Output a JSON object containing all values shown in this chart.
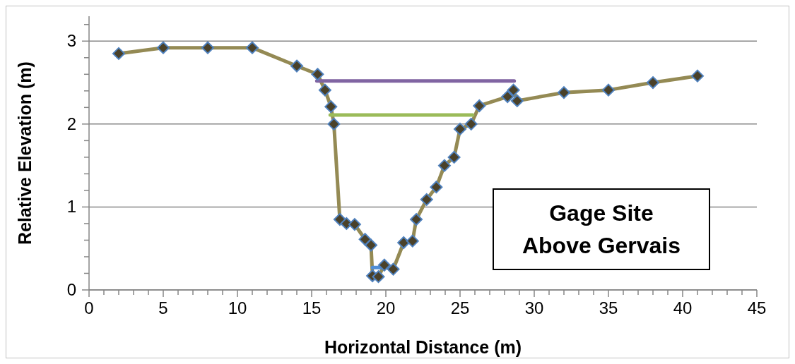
{
  "chart_data": {
    "type": "line",
    "xlabel": "Horizontal Distance (m)",
    "ylabel": "Relative Elevation (m)",
    "xlim": [
      0,
      45
    ],
    "xticks": [
      0,
      {
        "value": 1,
        "label": null
      },
      {
        "value": 2,
        "label": null
      },
      {
        "value": 3,
        "label": null
      },
      {
        "value": 4,
        "label": null
      },
      5,
      {
        "value": 6,
        "label": null
      },
      {
        "value": 7,
        "label": null
      },
      {
        "value": 8,
        "label": null
      },
      {
        "value": 9,
        "label": null
      },
      10,
      {
        "value": 11,
        "label": null
      },
      {
        "value": 12,
        "label": null
      },
      {
        "value": 13,
        "label": null
      },
      {
        "value": 14,
        "label": null
      },
      15,
      {
        "value": 16,
        "label": null
      },
      {
        "value": 17,
        "label": null
      },
      {
        "value": 18,
        "label": null
      },
      {
        "value": 19,
        "label": null
      },
      20,
      {
        "value": 21,
        "label": null
      },
      {
        "value": 22,
        "label": null
      },
      {
        "value": 23,
        "label": null
      },
      {
        "value": 24,
        "label": null
      },
      25,
      {
        "value": 26,
        "label": null
      },
      {
        "value": 27,
        "label": null
      },
      {
        "value": 28,
        "label": null
      },
      {
        "value": 29,
        "label": null
      },
      30,
      {
        "value": 31,
        "label": null
      },
      {
        "value": 32,
        "label": null
      },
      {
        "value": 33,
        "label": null
      },
      {
        "value": 34,
        "label": null
      },
      35,
      {
        "value": 36,
        "label": null
      },
      {
        "value": 37,
        "label": null
      },
      {
        "value": 38,
        "label": null
      },
      {
        "value": 39,
        "label": null
      },
      40,
      {
        "value": 41,
        "label": null
      },
      {
        "value": 42,
        "label": null
      },
      {
        "value": 43,
        "label": null
      },
      {
        "value": 44,
        "label": null
      },
      45
    ],
    "ylim": [
      0,
      3.3
    ],
    "yticks": [
      0,
      {
        "value": 0.2,
        "label": null
      },
      {
        "value": 0.4,
        "label": null
      },
      {
        "value": 0.6,
        "label": null
      },
      {
        "value": 0.8,
        "label": null
      },
      1,
      {
        "value": 1.2,
        "label": null
      },
      {
        "value": 1.4,
        "label": null
      },
      {
        "value": 1.6,
        "label": null
      },
      {
        "value": 1.8,
        "label": null
      },
      2,
      {
        "value": 2.2,
        "label": null
      },
      {
        "value": 2.4,
        "label": null
      },
      {
        "value": 2.6,
        "label": null
      },
      {
        "value": 2.8,
        "label": null
      },
      3,
      {
        "value": 3.2,
        "label": null
      }
    ],
    "grid": "y",
    "line_style": "solid",
    "series": [
      {
        "color": "#948a54",
        "marker": "diamond",
        "x": [
          2,
          5,
          8,
          11,
          14,
          15.4,
          15.9,
          16.3,
          16.5,
          16.9,
          17.35,
          17.9,
          18.6,
          19,
          19.1,
          19.5,
          19.9,
          20.5,
          21.2,
          21.8,
          22.05,
          22.75,
          23.4,
          23.95,
          24.6,
          25,
          25.75,
          26.3,
          28.2,
          28.6,
          28.85,
          32,
          35,
          38,
          41
        ],
        "values": [
          2.85,
          2.92,
          2.92,
          2.92,
          2.7,
          2.6,
          2.41,
          2.21,
          2,
          0.85,
          0.8,
          0.79,
          0.61,
          0.54,
          0.17,
          0.16,
          0.3,
          0.25,
          0.57,
          0.59,
          0.85,
          1.09,
          1.24,
          1.5,
          1.6,
          1.94,
          2,
          2.22,
          2.33,
          2.41,
          2.28,
          2.38,
          2.41,
          2.5,
          2.58
        ]
      },
      {
        "color": "#8064a2",
        "marker": "none",
        "x": [
          15.35,
          28.65
        ],
        "values": [
          2.52,
          2.52
        ]
      },
      {
        "color": "#9bbb59",
        "marker": "none",
        "x": [
          16.25,
          25.85
        ],
        "values": [
          2.11,
          2.11
        ]
      },
      {
        "color": "#4f8fd8",
        "marker": "none",
        "x": [
          19.1,
          20.6
        ],
        "values": [
          0.27,
          0.27
        ]
      }
    ],
    "annotations": [
      "Gage Site Above Gervais"
    ]
  }
}
